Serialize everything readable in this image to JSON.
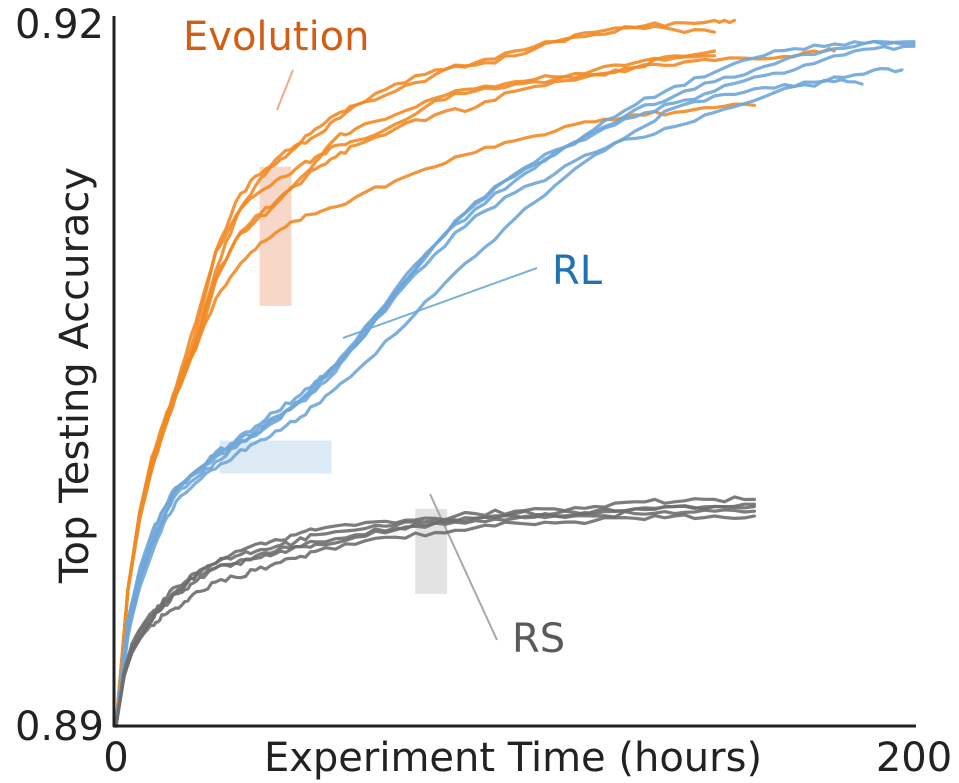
{
  "chart_data": {
    "type": "line",
    "title": "",
    "xlabel": "Experiment Time (hours)",
    "ylabel": "Top Testing Accuracy",
    "xlim": [
      0,
      200
    ],
    "ylim": [
      0.89,
      0.92
    ],
    "x_ticks": [
      "0",
      "200"
    ],
    "y_ticks": [
      "0.89",
      "0.92"
    ],
    "grid": false,
    "groups": [
      {
        "name": "Evolution",
        "color": "#f28a25",
        "label_color": "#d25d14",
        "band_color": "#f4cbb6",
        "band": {
          "x": [
            36,
            44
          ],
          "y": [
            0.9078,
            0.9137
          ]
        },
        "series": [
          {
            "x": [
              0,
              3,
              6,
              9,
              12,
              15,
              20,
              25,
              30,
              35,
              40,
              45,
              50,
              55,
              60,
              70,
              80,
              90,
              100,
              110,
              120,
              130,
              140,
              150
            ],
            "y": [
              0.89,
              0.8958,
              0.8991,
              0.9012,
              0.9026,
              0.9041,
              0.9062,
              0.9093,
              0.9115,
              0.9129,
              0.9138,
              0.9145,
              0.915,
              0.9157,
              0.9163,
              0.9172,
              0.9178,
              0.918,
              0.9184,
              0.919,
              0.9194,
              0.9196,
              0.9195,
              0.9194
            ]
          },
          {
            "x": [
              0,
              3,
              6,
              9,
              12,
              15,
              20,
              25,
              30,
              35,
              40,
              45,
              50,
              55,
              60,
              70,
              80,
              90,
              100,
              110,
              120,
              130,
              140,
              150,
              155
            ],
            "y": [
              0.89,
              0.8958,
              0.8991,
              0.9013,
              0.9028,
              0.9041,
              0.9067,
              0.9101,
              0.9122,
              0.9133,
              0.914,
              0.9146,
              0.9153,
              0.9159,
              0.9163,
              0.9169,
              0.9176,
              0.9181,
              0.9186,
              0.919,
              0.9193,
              0.9196,
              0.9198,
              0.9199,
              0.9199
            ]
          },
          {
            "x": [
              0,
              3,
              6,
              9,
              12,
              15,
              20,
              25,
              30,
              35,
              40,
              45,
              50,
              55,
              60,
              70,
              80,
              90,
              100,
              110,
              120,
              130,
              140,
              150
            ],
            "y": [
              0.89,
              0.8958,
              0.8991,
              0.9014,
              0.9029,
              0.9043,
              0.9063,
              0.909,
              0.9106,
              0.9116,
              0.9122,
              0.913,
              0.9139,
              0.9149,
              0.9153,
              0.9159,
              0.9166,
              0.917,
              0.9173,
              0.9175,
              0.9178,
              0.9181,
              0.9183,
              0.9184
            ]
          },
          {
            "x": [
              0,
              3,
              6,
              9,
              12,
              15,
              20,
              25,
              30,
              35,
              40,
              45,
              50,
              55,
              60,
              70,
              80,
              90,
              100,
              110,
              120,
              130,
              140,
              150,
              165,
              175,
              180
            ],
            "y": [
              0.89,
              0.8958,
              0.8989,
              0.901,
              0.9026,
              0.9043,
              0.9071,
              0.9101,
              0.9116,
              0.9125,
              0.9131,
              0.9136,
              0.9141,
              0.9146,
              0.9148,
              0.9155,
              0.9165,
              0.9169,
              0.9172,
              0.9174,
              0.9176,
              0.9179,
              0.918,
              0.9182,
              0.9183,
              0.9186,
              0.9186
            ]
          },
          {
            "x": [
              0,
              3,
              6,
              9,
              12,
              15,
              20,
              25,
              30,
              35,
              40,
              45,
              50,
              55,
              60,
              70,
              80,
              90,
              100,
              110,
              120,
              130,
              140,
              150
            ],
            "y": [
              0.89,
              0.8958,
              0.8988,
              0.9009,
              0.9025,
              0.904,
              0.906,
              0.9089,
              0.9106,
              0.9114,
              0.9121,
              0.9129,
              0.9136,
              0.9141,
              0.9146,
              0.9153,
              0.9159,
              0.9162,
              0.9169,
              0.9173,
              0.9176,
              0.9179,
              0.9184,
              0.9186
            ]
          },
          {
            "x": [
              0,
              3,
              6,
              9,
              12,
              15,
              20,
              25,
              30,
              35,
              40,
              45,
              50,
              55,
              60,
              70,
              80,
              90,
              100,
              110,
              120,
              130,
              140,
              150,
              160
            ],
            "y": [
              0.89,
              0.8958,
              0.8989,
              0.9009,
              0.9026,
              0.904,
              0.906,
              0.9081,
              0.9093,
              0.9102,
              0.9109,
              0.9114,
              0.9117,
              0.912,
              0.9124,
              0.9131,
              0.9137,
              0.9143,
              0.9148,
              0.9152,
              0.9156,
              0.9159,
              0.916,
              0.9162,
              0.9163
            ]
          }
        ]
      },
      {
        "name": "RL",
        "color": "#6fa6d8",
        "label_color": "#2073b0",
        "band_color": "#cfe3f1",
        "band": {
          "x": [
            26,
            54
          ],
          "y": [
            0.9007,
            0.9021
          ]
        },
        "series": [
          {
            "x": [
              0,
              3,
              6,
              9,
              12,
              15,
              20,
              25,
              30,
              35,
              40,
              45,
              50,
              55,
              60,
              70,
              80,
              90,
              100,
              110,
              120,
              130,
              140,
              150,
              160,
              170,
              180,
              190,
              200
            ],
            "y": [
              0.89,
              0.8938,
              0.8962,
              0.8977,
              0.8989,
              0.9,
              0.9007,
              0.9014,
              0.9019,
              0.9023,
              0.9029,
              0.9036,
              0.9042,
              0.905,
              0.9061,
              0.9083,
              0.9104,
              0.9122,
              0.9134,
              0.9144,
              0.9151,
              0.9158,
              0.9164,
              0.9169,
              0.9175,
              0.9178,
              0.9184,
              0.9187,
              0.9188
            ]
          },
          {
            "x": [
              0,
              3,
              6,
              9,
              12,
              15,
              20,
              25,
              30,
              35,
              40,
              45,
              50,
              55,
              60,
              70,
              80,
              90,
              100,
              110,
              120,
              130,
              140,
              150,
              160,
              170,
              180,
              190,
              200
            ],
            "y": [
              0.89,
              0.8945,
              0.8965,
              0.898,
              0.8992,
              0.9,
              0.9008,
              0.9016,
              0.902,
              0.9025,
              0.903,
              0.9036,
              0.9043,
              0.9052,
              0.9062,
              0.9084,
              0.9104,
              0.9119,
              0.9131,
              0.9142,
              0.9152,
              0.9161,
              0.9167,
              0.9173,
              0.9178,
              0.9184,
              0.9187,
              0.919,
              0.919
            ]
          },
          {
            "x": [
              0,
              3,
              6,
              9,
              12,
              15,
              20,
              25,
              30,
              35,
              40,
              45,
              50,
              55,
              60,
              70,
              80,
              90,
              100,
              110,
              120,
              130,
              140,
              150,
              160,
              170,
              180,
              190,
              200
            ],
            "y": [
              0.89,
              0.8942,
              0.8962,
              0.8977,
              0.8988,
              0.8998,
              0.9005,
              0.9012,
              0.9018,
              0.9024,
              0.9031,
              0.9037,
              0.9045,
              0.9053,
              0.9063,
              0.9085,
              0.9104,
              0.9121,
              0.9133,
              0.9143,
              0.9153,
              0.9163,
              0.9171,
              0.9177,
              0.9183,
              0.9187,
              0.9189,
              0.919,
              0.9189
            ]
          },
          {
            "x": [
              0,
              3,
              6,
              9,
              12,
              15,
              20,
              25,
              30,
              35,
              40,
              45,
              50,
              55,
              60,
              70,
              80,
              90,
              100,
              110,
              120,
              130,
              140,
              150,
              160,
              170,
              180,
              190,
              197
            ],
            "y": [
              0.89,
              0.8945,
              0.8967,
              0.8982,
              0.8992,
              0.9001,
              0.9008,
              0.9015,
              0.9021,
              0.9027,
              0.9033,
              0.9039,
              0.9046,
              0.9053,
              0.9061,
              0.9082,
              0.91,
              0.9116,
              0.9126,
              0.9134,
              0.9143,
              0.9149,
              0.9154,
              0.916,
              0.9165,
              0.9171,
              0.9175,
              0.9178,
              0.9178
            ]
          },
          {
            "x": [
              0,
              3,
              6,
              9,
              12,
              15,
              20,
              25,
              30,
              35,
              40,
              45,
              50,
              55,
              60,
              70,
              80,
              90,
              100,
              110,
              120,
              130,
              140,
              150,
              160,
              170,
              180,
              187
            ],
            "y": [
              0.89,
              0.894,
              0.8959,
              0.8973,
              0.8986,
              0.8995,
              0.9003,
              0.9009,
              0.9015,
              0.902,
              0.9025,
              0.9029,
              0.9036,
              0.9043,
              0.905,
              0.9066,
              0.9083,
              0.9099,
              0.9115,
              0.9129,
              0.9142,
              0.9152,
              0.9162,
              0.9167,
              0.917,
              0.9171,
              0.9173,
              0.9172
            ]
          }
        ]
      },
      {
        "name": "RS",
        "color": "#6e6e6e",
        "label_color": "#5a5a5a",
        "band_color": "#d9d9d9",
        "band": {
          "x": [
            75,
            83
          ],
          "y": [
            0.8956,
            0.8992
          ]
        },
        "series": [
          {
            "x": [
              0,
              2,
              4,
              6,
              8,
              10,
              12,
              15,
              18,
              21,
              25,
              30,
              35,
              40,
              45,
              50,
              60,
              70,
              80,
              90,
              100,
              110,
              120,
              130,
              140,
              150,
              160
            ],
            "y": [
              0.89,
              0.8922,
              0.8933,
              0.894,
              0.8945,
              0.8948,
              0.8951,
              0.8956,
              0.8961,
              0.8964,
              0.8967,
              0.8969,
              0.8971,
              0.8973,
              0.8976,
              0.8977,
              0.898,
              0.8983,
              0.8986,
              0.8988,
              0.899,
              0.899,
              0.8991,
              0.8992,
              0.8993,
              0.8993,
              0.8994
            ]
          },
          {
            "x": [
              0,
              2,
              4,
              6,
              8,
              10,
              12,
              15,
              18,
              21,
              25,
              30,
              35,
              40,
              45,
              50,
              60,
              70,
              80,
              90,
              100,
              110,
              120,
              130,
              140,
              150,
              160
            ],
            "y": [
              0.89,
              0.8923,
              0.8935,
              0.8941,
              0.8946,
              0.8949,
              0.8954,
              0.8959,
              0.8962,
              0.8966,
              0.8969,
              0.8974,
              0.8977,
              0.8979,
              0.8981,
              0.8983,
              0.8985,
              0.8986,
              0.8988,
              0.899,
              0.8991,
              0.8992,
              0.8993,
              0.8995,
              0.8995,
              0.8996,
              0.8996
            ]
          },
          {
            "x": [
              0,
              2,
              4,
              6,
              8,
              10,
              12,
              15,
              18,
              21,
              25,
              30,
              35,
              40,
              45,
              50,
              60,
              70,
              80,
              90,
              100,
              110,
              120,
              130,
              140,
              150,
              160
            ],
            "y": [
              0.89,
              0.8921,
              0.8932,
              0.8938,
              0.8943,
              0.8948,
              0.8952,
              0.8957,
              0.8961,
              0.8965,
              0.8969,
              0.8972,
              0.8974,
              0.8976,
              0.8978,
              0.8981,
              0.8983,
              0.8985,
              0.8987,
              0.8988,
              0.8989,
              0.8989,
              0.8989,
              0.899,
              0.899,
              0.8991,
              0.8991
            ]
          },
          {
            "x": [
              0,
              2,
              4,
              6,
              8,
              10,
              12,
              15,
              18,
              21,
              25,
              30,
              35,
              40,
              45,
              50,
              60,
              70,
              80,
              90,
              100,
              110,
              120,
              130,
              140,
              150,
              160
            ],
            "y": [
              0.89,
              0.8921,
              0.8931,
              0.8937,
              0.8943,
              0.8948,
              0.8953,
              0.8956,
              0.8958,
              0.8963,
              0.8967,
              0.8969,
              0.8972,
              0.8974,
              0.8976,
              0.8978,
              0.8981,
              0.8984,
              0.8986,
              0.8987,
              0.8988,
              0.8989,
              0.899,
              0.8992,
              0.8993,
              0.8993,
              0.8993
            ]
          },
          {
            "x": [
              0,
              2,
              4,
              6,
              8,
              10,
              12,
              15,
              18,
              21,
              25,
              30,
              35,
              40,
              45,
              50,
              60,
              70,
              80,
              90,
              100,
              110,
              120,
              130,
              140,
              150,
              160
            ],
            "y": [
              0.89,
              0.8922,
              0.8932,
              0.8937,
              0.8941,
              0.8944,
              0.8947,
              0.895,
              0.8953,
              0.8957,
              0.8961,
              0.8963,
              0.8966,
              0.8969,
              0.8971,
              0.8974,
              0.8977,
              0.898,
              0.8982,
              0.8984,
              0.8986,
              0.8986,
              0.8987,
              0.8988,
              0.8989,
              0.8989,
              0.8989
            ]
          }
        ]
      }
    ]
  }
}
